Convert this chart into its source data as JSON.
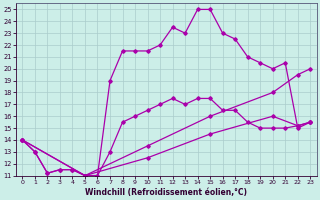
{
  "xlabel": "Windchill (Refroidissement éolien,°C)",
  "xlim": [
    -0.5,
    23.5
  ],
  "ylim": [
    11,
    25.5
  ],
  "yticks": [
    11,
    12,
    13,
    14,
    15,
    16,
    17,
    18,
    19,
    20,
    21,
    22,
    23,
    24,
    25
  ],
  "xticks": [
    0,
    1,
    2,
    3,
    4,
    5,
    6,
    7,
    8,
    9,
    10,
    11,
    12,
    13,
    14,
    15,
    16,
    17,
    18,
    19,
    20,
    21,
    22,
    23
  ],
  "bg_color": "#cceee8",
  "grid_color": "#aacccc",
  "line_color": "#aa00aa",
  "series1": [
    [
      0,
      14
    ],
    [
      1,
      13
    ],
    [
      2,
      11.2
    ],
    [
      3,
      11.5
    ],
    [
      4,
      11.5
    ],
    [
      5,
      11.0
    ],
    [
      6,
      11.0
    ],
    [
      7,
      13.0
    ],
    [
      8,
      15.5
    ],
    [
      9,
      16.0
    ],
    [
      10,
      16.5
    ],
    [
      11,
      17.0
    ],
    [
      12,
      17.5
    ],
    [
      13,
      17.0
    ],
    [
      14,
      17.5
    ],
    [
      15,
      17.5
    ],
    [
      16,
      16.5
    ],
    [
      17,
      16.5
    ],
    [
      18,
      15.5
    ],
    [
      19,
      15.0
    ],
    [
      20,
      15.0
    ],
    [
      21,
      15.0
    ],
    [
      22,
      15.2
    ],
    [
      23,
      15.5
    ]
  ],
  "series2": [
    [
      0,
      14
    ],
    [
      1,
      13
    ],
    [
      2,
      11.2
    ],
    [
      3,
      11.5
    ],
    [
      4,
      11.5
    ],
    [
      5,
      11.0
    ],
    [
      6,
      11.0
    ],
    [
      7,
      19.0
    ],
    [
      8,
      21.5
    ],
    [
      9,
      21.5
    ],
    [
      10,
      21.5
    ],
    [
      11,
      22.0
    ],
    [
      12,
      23.5
    ],
    [
      13,
      23.0
    ],
    [
      14,
      25.0
    ],
    [
      15,
      25.0
    ],
    [
      16,
      23.0
    ],
    [
      17,
      22.5
    ],
    [
      18,
      21.0
    ],
    [
      19,
      20.5
    ],
    [
      20,
      20.0
    ],
    [
      21,
      20.5
    ],
    [
      22,
      15.0
    ],
    [
      23,
      15.5
    ]
  ],
  "series3": [
    [
      0,
      14
    ],
    [
      5,
      11.0
    ],
    [
      10,
      13.5
    ],
    [
      15,
      16.0
    ],
    [
      20,
      18.0
    ],
    [
      22,
      19.5
    ],
    [
      23,
      20.0
    ]
  ],
  "series4": [
    [
      0,
      14
    ],
    [
      5,
      11.0
    ],
    [
      10,
      12.5
    ],
    [
      15,
      14.5
    ],
    [
      20,
      16.0
    ],
    [
      22,
      15.2
    ],
    [
      23,
      15.5
    ]
  ]
}
